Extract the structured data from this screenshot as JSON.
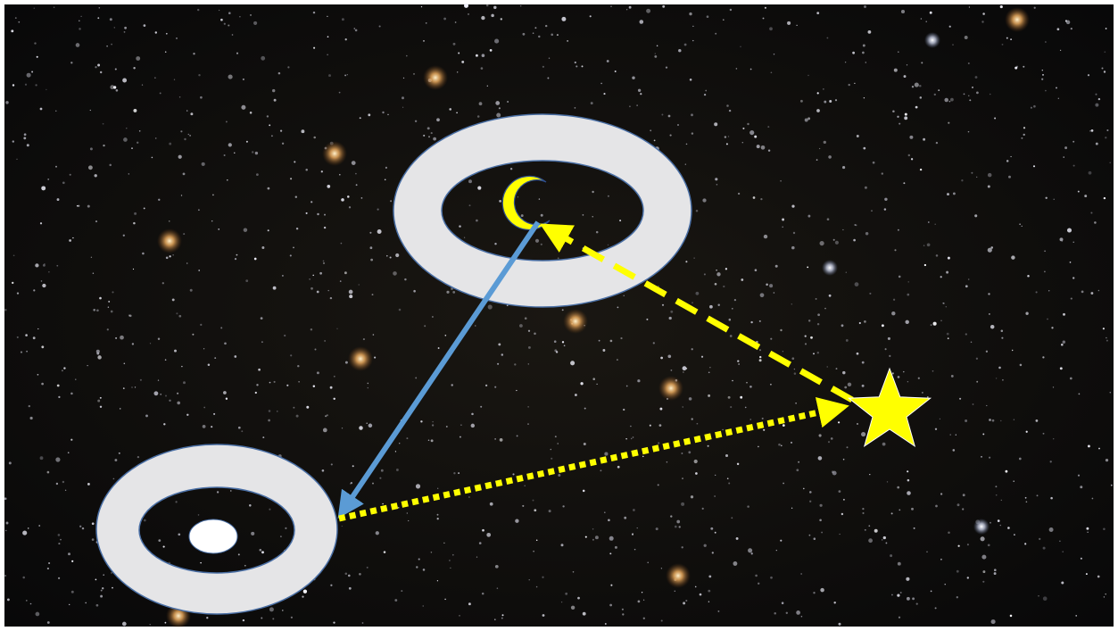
{
  "diagram": {
    "background": "starfield",
    "elements": [
      {
        "id": "ring-top",
        "shape": "ring",
        "contains": "crescent-moon-icon"
      },
      {
        "id": "ring-bottom",
        "shape": "ring",
        "contains": "white-ellipse"
      },
      {
        "id": "star",
        "shape": "five-point-star"
      }
    ],
    "connections": [
      {
        "from": "ring-top",
        "to": "ring-bottom",
        "style": "solid",
        "color": "#5b9bd5",
        "arrowhead": "end"
      },
      {
        "from": "star",
        "to": "crescent-moon-icon",
        "style": "dashed",
        "color": "#ffff00",
        "arrowhead": "end"
      },
      {
        "from": "ring-bottom",
        "to": "star",
        "style": "dotted",
        "color": "#ffff00",
        "arrowhead": "end"
      }
    ]
  },
  "colors": {
    "sky": "#0a0a0c",
    "ring": "#e5e5e7",
    "ring_outline": "#4a6fa5",
    "blue_arrow": "#5b9bd5",
    "yellow": "#ffff00",
    "moon": "#ffff00",
    "star": "#ffff00"
  }
}
